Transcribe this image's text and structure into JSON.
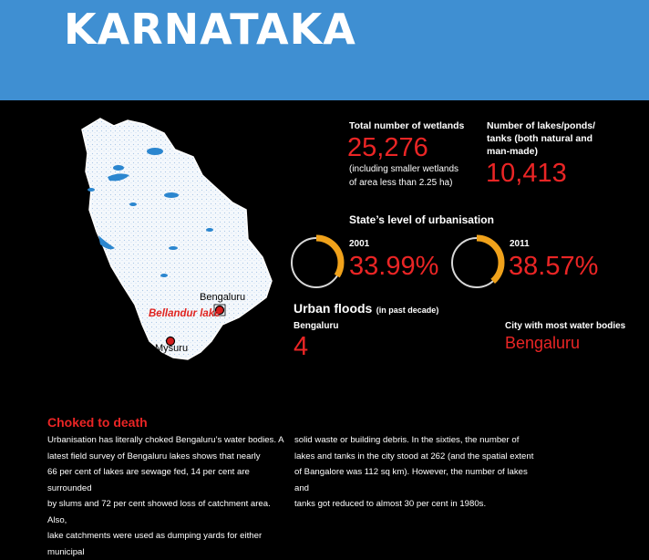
{
  "header": {
    "title": "KARNATAKA"
  },
  "map": {
    "labels": {
      "bengaluru": "Bengaluru",
      "bellandur": "Bellandur lake",
      "mysuru": "Mysuru"
    }
  },
  "stats": {
    "wetlands": {
      "label": "Total number of wetlands",
      "value": "25,276",
      "note_line1": "(including smaller wetlands",
      "note_line2": "of area less than 2.25 ha)"
    },
    "lakes": {
      "label_line1": "Number of lakes/ponds/",
      "label_line2": "tanks (both natural and",
      "label_line3": "man-made)",
      "value": "10,413"
    }
  },
  "urbanisation": {
    "title": "State’s level of urbanisation",
    "items": [
      {
        "year": "2001",
        "value": "33.99%",
        "fraction": 0.3399
      },
      {
        "year": "2011",
        "value": "38.57%",
        "fraction": 0.3857
      }
    ]
  },
  "floods": {
    "title": "Urban floods",
    "subtitle": "(in past decade)",
    "city_label": "Bengaluru",
    "value": "4"
  },
  "water_bodies": {
    "label": "City with most water bodies",
    "value": "Bengaluru"
  },
  "article": {
    "title": "Choked to death",
    "col1": [
      "Urbanisation has literally choked Bengaluru’s water bodies. A",
      "latest field survey of Bengaluru lakes shows that nearly",
      "66 per cent of lakes are sewage fed, 14 per cent are surrounded",
      "by slums and 72 per cent showed loss of catchment area. Also,",
      "lake catchments were used as dumping yards for either municipal"
    ],
    "col2": [
      "solid waste or building debris. In the sixties, the number of",
      "lakes and tanks in the city stood at 262 (and the spatial extent",
      "of Bangalore was 112 sq km). However, the number of lakes and",
      "tanks got reduced to almost 30 per cent in 1980s."
    ]
  },
  "colors": {
    "header_bg": "#3f8fd2",
    "accent_red": "#ea2525",
    "ring_fill": "#f0a21b",
    "ring_track": "#d8d8d8"
  }
}
